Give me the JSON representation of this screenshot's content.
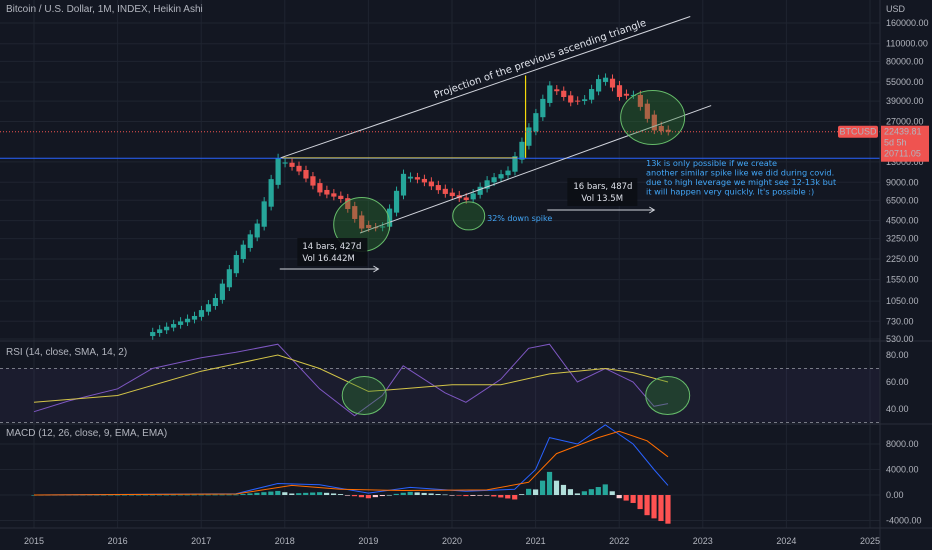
{
  "header": {
    "title": "Bitcoin / U.S. Dollar, 1M, INDEX, Heikin Ashi",
    "currency": "USD"
  },
  "colors": {
    "background": "#131722",
    "grid": "#1f2430",
    "up": "#26a69a",
    "down": "#ef5350",
    "channel": "#d1d4dc",
    "horizontal": "#2962ff",
    "flat_top": "#d8c85a",
    "rsi": "#7e57c2",
    "rsi_ma": "#d4c548",
    "macd": "#2962ff",
    "signal": "#ff6d00",
    "circle_fill": "#2e7d32"
  },
  "price_pane": {
    "y_scale": "log",
    "y_ticks": [
      "160000.00",
      "110000.00",
      "80000.00",
      "55000.00",
      "39000.00",
      "27000.00",
      "13000.00",
      "9000.00",
      "6500.00",
      "4500.00",
      "3250.00",
      "2250.00",
      "1550.00",
      "1050.00",
      "730.00",
      "530.00"
    ],
    "last_price_label": "BTCUSD",
    "last_price": "22439.81",
    "countdown": "5d 5h",
    "prev_price": "20711.05",
    "channel_label": "Projection of the previous ascending triangle",
    "box1": {
      "line1": "14 bars, 427d",
      "line2": "Vol 16.442M"
    },
    "box2": {
      "line1": "16 bars, 487d",
      "line2": "Vol 13.5M"
    },
    "spike_label": "32% down spike",
    "note_lines": [
      "13k is only possible if we create",
      "another similar spike like we did during covid.",
      "due to high leverage we might see 12-13k but",
      "it will happen very quickly. It's possible :)"
    ]
  },
  "rsi_pane": {
    "title": "RSI (14, close, SMA, 14, 2)",
    "y_ticks": [
      "80.00",
      "60.00",
      "40.00"
    ]
  },
  "macd_pane": {
    "title": "MACD (12, 26, close, 9, EMA, EMA)",
    "y_ticks": [
      "8000.00",
      "4000.00",
      "0.00",
      "-4000.00"
    ]
  },
  "x_ticks": [
    "2015",
    "2016",
    "2017",
    "2018",
    "2019",
    "2020",
    "2021",
    "2022",
    "2023",
    "2024",
    "2025"
  ],
  "chart_data": {
    "type": "candlestick",
    "interval": "1M",
    "style": "Heikin Ashi",
    "y_scale": "log",
    "x_ticks": [
      "2015",
      "2016",
      "2017",
      "2018",
      "2019",
      "2020",
      "2021",
      "2022",
      "2023",
      "2024",
      "2025"
    ],
    "anchors": [
      [
        "2016-06",
        600
      ],
      [
        "2016-12",
        800
      ],
      [
        "2017-03",
        1100
      ],
      [
        "2017-06",
        2400
      ],
      [
        "2017-09",
        4200
      ],
      [
        "2017-12",
        14000
      ],
      [
        "2018-03",
        11000
      ],
      [
        "2018-06",
        7500
      ],
      [
        "2018-09",
        6700
      ],
      [
        "2018-12",
        3900
      ],
      [
        "2019-03",
        4000
      ],
      [
        "2019-06",
        10500
      ],
      [
        "2019-09",
        9000
      ],
      [
        "2019-12",
        7300
      ],
      [
        "2020-03",
        6500
      ],
      [
        "2020-06",
        9300
      ],
      [
        "2020-09",
        11000
      ],
      [
        "2020-12",
        24000
      ],
      [
        "2021-03",
        52000
      ],
      [
        "2021-06",
        38000
      ],
      [
        "2021-08",
        40000
      ],
      [
        "2021-10",
        58000
      ],
      [
        "2021-11",
        60000
      ],
      [
        "2022-01",
        42000
      ],
      [
        "2022-03",
        44000
      ],
      [
        "2022-06",
        23000
      ],
      [
        "2022-08",
        22439.81
      ]
    ],
    "rsi": [
      [
        "2015-01",
        38
      ],
      [
        "2015-06",
        46
      ],
      [
        "2016-01",
        55
      ],
      [
        "2016-06",
        70
      ],
      [
        "2017-01",
        78
      ],
      [
        "2017-06",
        82
      ],
      [
        "2017-12",
        88
      ],
      [
        "2018-06",
        55
      ],
      [
        "2018-11",
        35
      ],
      [
        "2019-03",
        50
      ],
      [
        "2019-06",
        72
      ],
      [
        "2019-12",
        52
      ],
      [
        "2020-03",
        45
      ],
      [
        "2020-08",
        62
      ],
      [
        "2020-12",
        85
      ],
      [
        "2021-03",
        88
      ],
      [
        "2021-07",
        60
      ],
      [
        "2021-11",
        70
      ],
      [
        "2022-03",
        60
      ],
      [
        "2022-06",
        42
      ],
      [
        "2022-08",
        44
      ]
    ],
    "rsi_ma": [
      [
        "2015-01",
        45
      ],
      [
        "2016-01",
        50
      ],
      [
        "2017-01",
        68
      ],
      [
        "2017-12",
        80
      ],
      [
        "2018-06",
        70
      ],
      [
        "2019-01",
        53
      ],
      [
        "2019-06",
        55
      ],
      [
        "2020-01",
        58
      ],
      [
        "2020-08",
        58
      ],
      [
        "2021-03",
        66
      ],
      [
        "2021-11",
        70
      ],
      [
        "2022-03",
        67
      ],
      [
        "2022-08",
        60
      ]
    ],
    "macd": [
      [
        "2015-01",
        0
      ],
      [
        "2017-06",
        200
      ],
      [
        "2017-12",
        1800
      ],
      [
        "2018-06",
        1600
      ],
      [
        "2019-01",
        300
      ],
      [
        "2019-07",
        1200
      ],
      [
        "2020-03",
        600
      ],
      [
        "2020-10",
        900
      ],
      [
        "2021-01",
        4000
      ],
      [
        "2021-03",
        9000
      ],
      [
        "2021-07",
        8000
      ],
      [
        "2021-11",
        11000
      ],
      [
        "2022-03",
        8000
      ],
      [
        "2022-06",
        4000
      ],
      [
        "2022-08",
        1500
      ]
    ],
    "signal": [
      [
        "2015-01",
        0
      ],
      [
        "2017-06",
        150
      ],
      [
        "2018-02",
        1500
      ],
      [
        "2018-09",
        900
      ],
      [
        "2019-06",
        700
      ],
      [
        "2020-06",
        800
      ],
      [
        "2020-12",
        2000
      ],
      [
        "2021-04",
        6500
      ],
      [
        "2021-10",
        9000
      ],
      [
        "2022-01",
        10000
      ],
      [
        "2022-05",
        8500
      ],
      [
        "2022-08",
        6000
      ]
    ],
    "macd_ylim": [
      -4500,
      12000
    ],
    "rsi_ylim": [
      30,
      90
    ],
    "price_ylim": [
      520,
      200000
    ]
  }
}
